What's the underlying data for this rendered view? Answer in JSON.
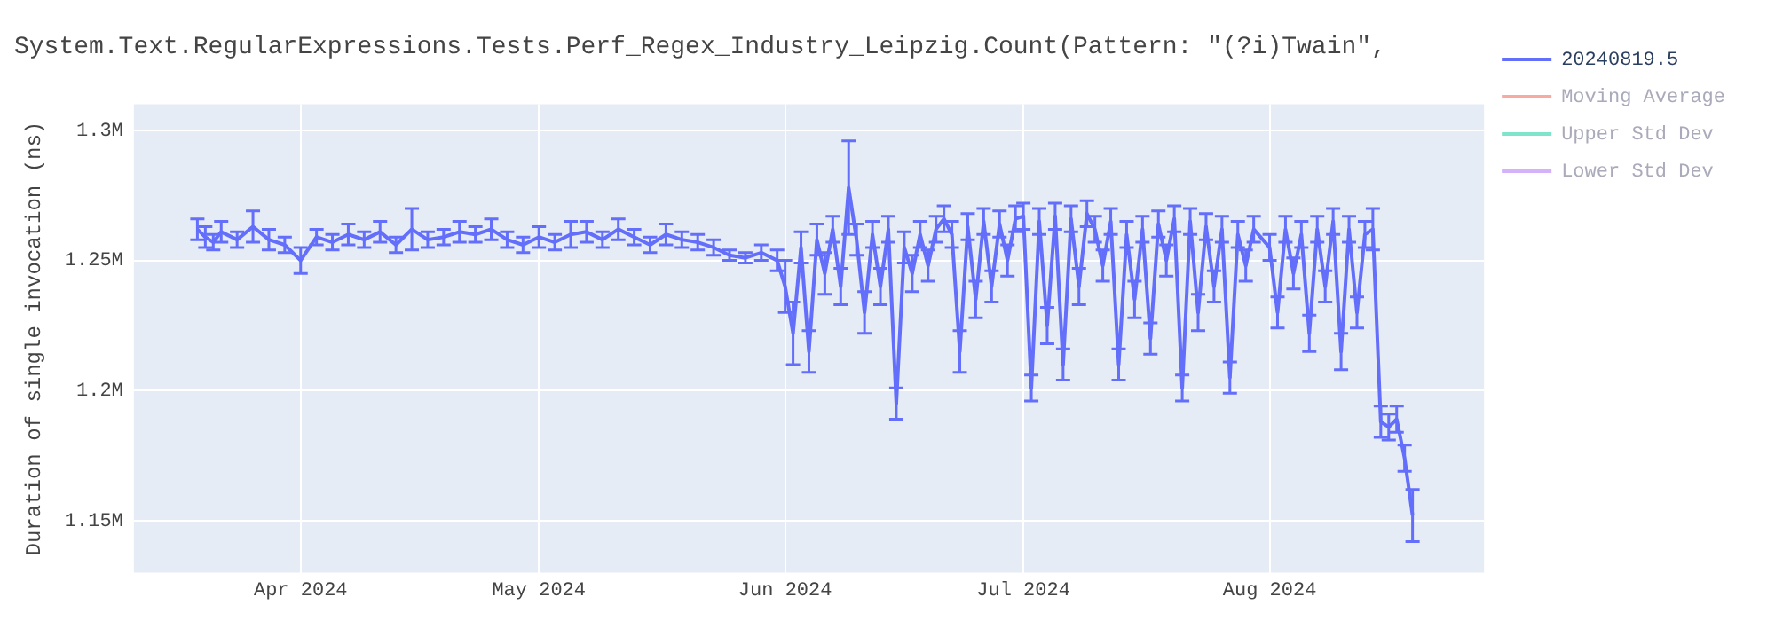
{
  "chart_data": {
    "type": "line",
    "title": "System.Text.RegularExpressions.Tests.Perf_Regex_Industry_Leipzig.Count(Pattern: \"(?i)Twain\",",
    "ylabel": "Duration of single invocation (ns)",
    "x": [
      "2024-03-19",
      "2024-03-20",
      "2024-03-21",
      "2024-03-22",
      "2024-03-24",
      "2024-03-26",
      "2024-03-28",
      "2024-03-30",
      "2024-04-01",
      "2024-04-03",
      "2024-04-05",
      "2024-04-07",
      "2024-04-09",
      "2024-04-11",
      "2024-04-13",
      "2024-04-15",
      "2024-04-17",
      "2024-04-19",
      "2024-04-21",
      "2024-04-23",
      "2024-04-25",
      "2024-04-27",
      "2024-04-29",
      "2024-05-01",
      "2024-05-03",
      "2024-05-05",
      "2024-05-07",
      "2024-05-09",
      "2024-05-11",
      "2024-05-13",
      "2024-05-15",
      "2024-05-17",
      "2024-05-19",
      "2024-05-21",
      "2024-05-23",
      "2024-05-25",
      "2024-05-27",
      "2024-05-29",
      "2024-05-31",
      "2024-06-01",
      "2024-06-02",
      "2024-06-03",
      "2024-06-04",
      "2024-06-05",
      "2024-06-06",
      "2024-06-07",
      "2024-06-08",
      "2024-06-09",
      "2024-06-10",
      "2024-06-11",
      "2024-06-12",
      "2024-06-13",
      "2024-06-14",
      "2024-06-15",
      "2024-06-16",
      "2024-06-17",
      "2024-06-18",
      "2024-06-19",
      "2024-06-20",
      "2024-06-21",
      "2024-06-22",
      "2024-06-23",
      "2024-06-24",
      "2024-06-25",
      "2024-06-26",
      "2024-06-27",
      "2024-06-28",
      "2024-06-29",
      "2024-06-30",
      "2024-07-01",
      "2024-07-02",
      "2024-07-03",
      "2024-07-04",
      "2024-07-05",
      "2024-07-06",
      "2024-07-07",
      "2024-07-08",
      "2024-07-09",
      "2024-07-10",
      "2024-07-11",
      "2024-07-12",
      "2024-07-13",
      "2024-07-14",
      "2024-07-15",
      "2024-07-16",
      "2024-07-17",
      "2024-07-18",
      "2024-07-19",
      "2024-07-20",
      "2024-07-21",
      "2024-07-22",
      "2024-07-23",
      "2024-07-24",
      "2024-07-25",
      "2024-07-26",
      "2024-07-27",
      "2024-07-28",
      "2024-07-29",
      "2024-07-30",
      "2024-08-01",
      "2024-08-02",
      "2024-08-03",
      "2024-08-04",
      "2024-08-05",
      "2024-08-06",
      "2024-08-07",
      "2024-08-08",
      "2024-08-09",
      "2024-08-10",
      "2024-08-11",
      "2024-08-12",
      "2024-08-13",
      "2024-08-14",
      "2024-08-15",
      "2024-08-16",
      "2024-08-17",
      "2024-08-18",
      "2024-08-19"
    ],
    "series": [
      {
        "name": "20240819.5",
        "color": "#636efa",
        "values": [
          1262000,
          1259000,
          1257000,
          1261000,
          1258000,
          1263000,
          1258000,
          1256000,
          1250000,
          1259000,
          1257000,
          1260000,
          1258000,
          1261000,
          1256000,
          1262000,
          1258000,
          1259000,
          1261000,
          1260000,
          1262000,
          1258000,
          1256000,
          1259000,
          1257000,
          1260000,
          1261000,
          1258000,
          1262000,
          1259000,
          1256000,
          1260000,
          1258000,
          1257000,
          1255000,
          1252000,
          1251000,
          1253000,
          1250000,
          1240000,
          1222000,
          1255000,
          1215000,
          1258000,
          1245000,
          1262000,
          1240000,
          1278000,
          1258000,
          1230000,
          1260000,
          1240000,
          1262000,
          1195000,
          1255000,
          1245000,
          1260000,
          1248000,
          1262000,
          1266000,
          1260000,
          1215000,
          1263000,
          1235000,
          1265000,
          1240000,
          1264000,
          1250000,
          1266000,
          1267000,
          1201000,
          1265000,
          1225000,
          1267000,
          1210000,
          1266000,
          1240000,
          1268000,
          1262000,
          1248000,
          1265000,
          1210000,
          1260000,
          1235000,
          1262000,
          1220000,
          1264000,
          1250000,
          1266000,
          1201000,
          1265000,
          1230000,
          1263000,
          1240000,
          1262000,
          1205000,
          1260000,
          1248000,
          1262000,
          1255000,
          1230000,
          1262000,
          1245000,
          1260000,
          1222000,
          1262000,
          1240000,
          1265000,
          1215000,
          1262000,
          1230000,
          1260000,
          1262000,
          1188000,
          1186000,
          1189000,
          1174000,
          1152000
        ],
        "errors": [
          4000,
          4000,
          3000,
          4000,
          3000,
          6000,
          4000,
          3000,
          5000,
          3000,
          3000,
          4000,
          3000,
          4000,
          3000,
          8000,
          3000,
          3000,
          4000,
          3000,
          4000,
          3000,
          3000,
          4000,
          3000,
          5000,
          4000,
          3000,
          4000,
          3000,
          3000,
          4000,
          3000,
          3000,
          3000,
          2000,
          2000,
          3000,
          4000,
          10000,
          12000,
          6000,
          8000,
          6000,
          8000,
          5000,
          7000,
          18000,
          6000,
          8000,
          5000,
          7000,
          5000,
          6000,
          6000,
          7000,
          5000,
          6000,
          5000,
          5000,
          5000,
          8000,
          5000,
          7000,
          5000,
          6000,
          5000,
          6000,
          5000,
          5000,
          5000,
          5000,
          7000,
          5000,
          6000,
          5000,
          7000,
          5000,
          5000,
          6000,
          5000,
          6000,
          5000,
          7000,
          5000,
          6000,
          5000,
          6000,
          5000,
          5000,
          5000,
          7000,
          5000,
          6000,
          5000,
          6000,
          5000,
          6000,
          5000,
          5000,
          6000,
          5000,
          6000,
          5000,
          7000,
          5000,
          6000,
          5000,
          7000,
          5000,
          6000,
          5000,
          8000,
          6000,
          5000,
          5000,
          5000,
          10000
        ]
      },
      {
        "name": "Moving Average",
        "color": "#ef553b",
        "values": [
          null,
          null,
          null,
          null,
          null,
          null,
          null,
          null,
          null,
          null,
          null,
          null,
          null,
          null,
          null,
          null,
          null,
          null,
          null,
          null,
          null,
          null,
          null,
          null,
          null,
          null,
          null,
          null,
          null,
          null,
          null,
          null,
          null,
          null,
          null,
          null,
          null,
          null,
          null,
          null,
          null,
          null,
          null,
          null,
          null,
          null,
          null,
          null,
          null,
          null,
          null,
          null,
          null,
          null,
          null,
          null,
          null,
          null,
          null,
          null,
          null,
          null,
          null,
          null,
          null,
          null,
          null,
          null,
          null,
          null,
          null,
          null,
          null,
          null,
          null,
          null,
          null,
          null,
          null,
          null,
          null,
          null,
          null,
          null,
          null,
          null,
          null,
          null,
          null,
          null,
          null,
          null,
          null,
          null,
          null,
          null,
          null,
          null,
          null,
          null,
          null,
          null,
          null,
          null,
          null,
          null,
          null,
          null,
          null,
          null,
          null,
          null,
          null,
          null,
          null,
          null,
          null,
          null
        ]
      },
      {
        "name": "Upper Std Dev",
        "color": "#00cc96",
        "values": [
          null,
          null,
          null,
          null,
          null,
          null,
          null,
          null,
          null,
          null,
          null,
          null,
          null,
          null,
          null,
          null,
          null,
          null,
          null,
          null,
          null,
          null,
          null,
          null,
          null,
          null,
          null,
          null,
          null,
          null,
          null,
          null,
          null,
          null,
          null,
          null,
          null,
          null,
          null,
          null,
          null,
          null,
          null,
          null,
          null,
          null,
          null,
          null,
          null,
          null,
          null,
          null,
          null,
          null,
          null,
          null,
          null,
          null,
          null,
          null,
          null,
          null,
          null,
          null,
          null,
          null,
          null,
          null,
          null,
          null,
          null,
          null,
          null,
          null,
          null,
          null,
          null,
          null,
          null,
          null,
          null,
          null,
          null,
          null,
          null,
          null,
          null,
          null,
          null,
          null,
          null,
          null,
          null,
          null,
          null,
          null,
          null,
          null,
          null,
          null,
          null,
          null,
          null,
          null,
          null,
          null,
          null,
          null,
          null,
          null,
          null,
          null,
          null,
          null,
          null,
          null,
          null,
          null
        ]
      },
      {
        "name": "Lower Std Dev",
        "color": "#ab63fa",
        "values": [
          null,
          null,
          null,
          null,
          null,
          null,
          null,
          null,
          null,
          null,
          null,
          null,
          null,
          null,
          null,
          null,
          null,
          null,
          null,
          null,
          null,
          null,
          null,
          null,
          null,
          null,
          null,
          null,
          null,
          null,
          null,
          null,
          null,
          null,
          null,
          null,
          null,
          null,
          null,
          null,
          null,
          null,
          null,
          null,
          null,
          null,
          null,
          null,
          null,
          null,
          null,
          null,
          null,
          null,
          null,
          null,
          null,
          null,
          null,
          null,
          null,
          null,
          null,
          null,
          null,
          null,
          null,
          null,
          null,
          null,
          null,
          null,
          null,
          null,
          null,
          null,
          null,
          null,
          null,
          null,
          null,
          null,
          null,
          null,
          null,
          null,
          null,
          null,
          null,
          null,
          null,
          null,
          null,
          null,
          null,
          null,
          null,
          null,
          null,
          null,
          null,
          null,
          null,
          null,
          null,
          null,
          null,
          null,
          null,
          null,
          null,
          null,
          null,
          null,
          null,
          null,
          null,
          null
        ]
      }
    ],
    "xlim": [
      "2024-03-11",
      "2024-08-28"
    ],
    "xticks": [
      {
        "value": "2024-04-01",
        "label": "Apr 2024"
      },
      {
        "value": "2024-05-01",
        "label": "May 2024"
      },
      {
        "value": "2024-06-01",
        "label": "Jun 2024"
      },
      {
        "value": "2024-07-01",
        "label": "Jul 2024"
      },
      {
        "value": "2024-08-01",
        "label": "Aug 2024"
      }
    ],
    "ylim": [
      1130000,
      1310000
    ],
    "yticks": [
      {
        "value": 1150000,
        "label": "1.15M"
      },
      {
        "value": 1200000,
        "label": "1.2M"
      },
      {
        "value": 1250000,
        "label": "1.25M"
      },
      {
        "value": 1300000,
        "label": "1.3M"
      }
    ],
    "grid": true,
    "legend": "top right"
  }
}
